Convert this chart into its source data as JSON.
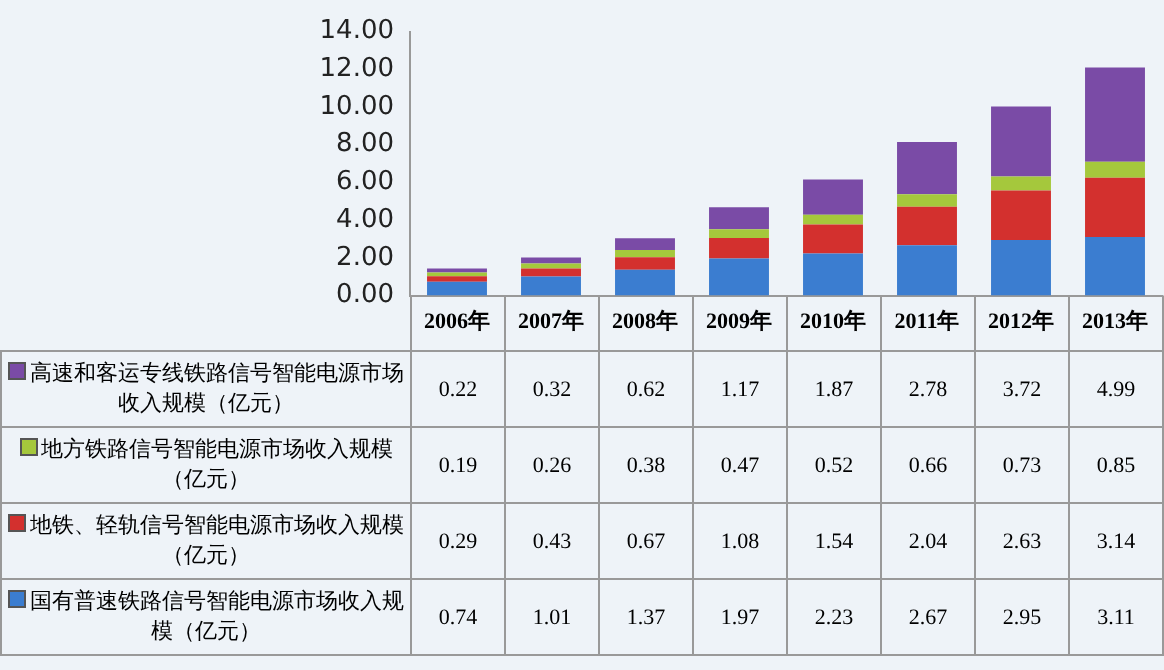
{
  "chart_data": {
    "type": "bar",
    "stacked": true,
    "categories": [
      "2006年",
      "2007年",
      "2008年",
      "2009年",
      "2010年",
      "2011年",
      "2012年",
      "2013年"
    ],
    "series": [
      {
        "name": "国有普速铁路信号智能电源市场收入规模（亿元）",
        "color": "#3b7dd0",
        "values": [
          0.74,
          1.01,
          1.37,
          1.97,
          2.23,
          2.67,
          2.95,
          3.11
        ]
      },
      {
        "name": "地铁、轻轨信号智能电源市场收入规模（亿元）",
        "color": "#d3302e",
        "values": [
          0.29,
          0.43,
          0.67,
          1.08,
          1.54,
          2.04,
          2.63,
          3.14
        ]
      },
      {
        "name": "地方铁路信号智能电源市场收入规模（亿元）",
        "color": "#a5c83c",
        "values": [
          0.19,
          0.26,
          0.38,
          0.47,
          0.52,
          0.66,
          0.73,
          0.85
        ]
      },
      {
        "name": "高速和客运专线铁路信号智能电源市场收入规模（亿元）",
        "color": "#7a4ba6",
        "values": [
          0.22,
          0.32,
          0.62,
          1.17,
          1.87,
          2.78,
          3.72,
          4.99
        ]
      }
    ],
    "ylim": [
      0,
      14
    ],
    "yticks": [
      {
        "value": 0,
        "label": "0.00"
      },
      {
        "value": 2,
        "label": "2.00"
      },
      {
        "value": 4,
        "label": "4.00"
      },
      {
        "value": 6,
        "label": "6.00"
      },
      {
        "value": 8,
        "label": "8.00"
      },
      {
        "value": 10,
        "label": "10.00"
      },
      {
        "value": 12,
        "label": "12.00"
      },
      {
        "value": 14,
        "label": "14.00"
      }
    ],
    "grid": false,
    "legend": "bottom",
    "data_labels": true
  }
}
